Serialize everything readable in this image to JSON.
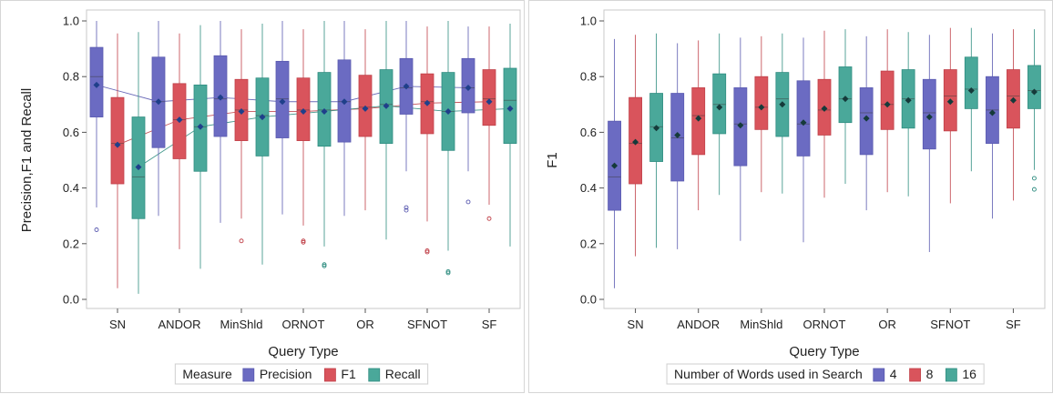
{
  "chart_data": [
    {
      "type": "box",
      "xlabel": "Query Type",
      "ylabel": "Precision,F1 and Recall",
      "ylim": [
        0,
        1.0
      ],
      "yticks": [
        "0.0",
        "0.2",
        "0.4",
        "0.6",
        "0.8",
        "1.0"
      ],
      "categories": [
        "SN",
        "ANDOR",
        "MinShld",
        "ORNOT",
        "OR",
        "SFNOT",
        "SF"
      ],
      "legend": {
        "title": "Measure",
        "position": "bottom"
      },
      "connect_means": true,
      "series": [
        {
          "name": "Precision",
          "color": "#6b6bc2",
          "edge": "#5a5ab0",
          "boxes": [
            {
              "min": 0.33,
              "q1": 0.655,
              "median": 0.8,
              "q3": 0.905,
              "max": 1.0,
              "mean": 0.77,
              "outliers": [
                0.25
              ]
            },
            {
              "min": 0.3,
              "q1": 0.545,
              "median": 0.71,
              "q3": 0.87,
              "max": 1.0,
              "mean": 0.71,
              "outliers": []
            },
            {
              "min": 0.275,
              "q1": 0.585,
              "median": 0.72,
              "q3": 0.875,
              "max": 1.0,
              "mean": 0.725,
              "outliers": []
            },
            {
              "min": 0.305,
              "q1": 0.58,
              "median": 0.72,
              "q3": 0.855,
              "max": 1.0,
              "mean": 0.71,
              "outliers": []
            },
            {
              "min": 0.3,
              "q1": 0.565,
              "median": 0.71,
              "q3": 0.86,
              "max": 1.0,
              "mean": 0.71,
              "outliers": []
            },
            {
              "min": 0.46,
              "q1": 0.665,
              "median": 0.76,
              "q3": 0.865,
              "max": 1.0,
              "mean": 0.765,
              "outliers": [
                0.33,
                0.32
              ]
            },
            {
              "min": 0.46,
              "q1": 0.67,
              "median": 0.76,
              "q3": 0.865,
              "max": 0.98,
              "mean": 0.76,
              "outliers": [
                0.35
              ]
            }
          ]
        },
        {
          "name": "F1",
          "color": "#d9545c",
          "edge": "#c04048",
          "boxes": [
            {
              "min": 0.04,
              "q1": 0.415,
              "median": 0.56,
              "q3": 0.725,
              "max": 0.955,
              "mean": 0.555,
              "outliers": []
            },
            {
              "min": 0.18,
              "q1": 0.505,
              "median": 0.645,
              "q3": 0.775,
              "max": 0.955,
              "mean": 0.645,
              "outliers": []
            },
            {
              "min": 0.29,
              "q1": 0.57,
              "median": 0.68,
              "q3": 0.79,
              "max": 0.97,
              "mean": 0.675,
              "outliers": [
                0.21
              ]
            },
            {
              "min": 0.265,
              "q1": 0.57,
              "median": 0.68,
              "q3": 0.795,
              "max": 0.97,
              "mean": 0.675,
              "outliers": [
                0.21,
                0.205
              ]
            },
            {
              "min": 0.32,
              "q1": 0.585,
              "median": 0.69,
              "q3": 0.805,
              "max": 0.97,
              "mean": 0.685,
              "outliers": []
            },
            {
              "min": 0.28,
              "q1": 0.595,
              "median": 0.71,
              "q3": 0.81,
              "max": 0.98,
              "mean": 0.705,
              "outliers": [
                0.175,
                0.17
              ]
            },
            {
              "min": 0.34,
              "q1": 0.625,
              "median": 0.72,
              "q3": 0.825,
              "max": 0.98,
              "mean": 0.71,
              "outliers": [
                0.29
              ]
            }
          ]
        },
        {
          "name": "Recall",
          "color": "#4aa89a",
          "edge": "#2f8d80",
          "boxes": [
            {
              "min": 0.02,
              "q1": 0.29,
              "median": 0.44,
              "q3": 0.655,
              "max": 0.96,
              "mean": 0.475,
              "outliers": []
            },
            {
              "min": 0.11,
              "q1": 0.46,
              "median": 0.62,
              "q3": 0.77,
              "max": 0.985,
              "mean": 0.62,
              "outliers": []
            },
            {
              "min": 0.125,
              "q1": 0.515,
              "median": 0.66,
              "q3": 0.795,
              "max": 0.99,
              "mean": 0.655,
              "outliers": []
            },
            {
              "min": 0.19,
              "q1": 0.55,
              "median": 0.68,
              "q3": 0.815,
              "max": 1.0,
              "mean": 0.675,
              "outliers": [
                0.125,
                0.12
              ]
            },
            {
              "min": 0.215,
              "q1": 0.56,
              "median": 0.7,
              "q3": 0.825,
              "max": 1.0,
              "mean": 0.695,
              "outliers": []
            },
            {
              "min": 0.175,
              "q1": 0.535,
              "median": 0.675,
              "q3": 0.815,
              "max": 1.0,
              "mean": 0.675,
              "outliers": [
                0.1,
                0.095
              ]
            },
            {
              "min": 0.19,
              "q1": 0.56,
              "median": 0.715,
              "q3": 0.83,
              "max": 0.99,
              "mean": 0.685,
              "outliers": []
            }
          ]
        }
      ]
    },
    {
      "type": "box",
      "xlabel": "Query Type",
      "ylabel": "F1",
      "ylim": [
        0,
        1.0
      ],
      "yticks": [
        "0.0",
        "0.2",
        "0.4",
        "0.6",
        "0.8",
        "1.0"
      ],
      "categories": [
        "SN",
        "ANDOR",
        "MinShld",
        "ORNOT",
        "OR",
        "SFNOT",
        "SF"
      ],
      "legend": {
        "title": "Number of Words used in Search",
        "position": "bottom"
      },
      "connect_means": false,
      "series": [
        {
          "name": "4",
          "color": "#6b6bc2",
          "edge": "#5a5ab0",
          "boxes": [
            {
              "min": 0.04,
              "q1": 0.32,
              "median": 0.44,
              "q3": 0.64,
              "max": 0.935,
              "mean": 0.48,
              "outliers": []
            },
            {
              "min": 0.18,
              "q1": 0.425,
              "median": 0.58,
              "q3": 0.74,
              "max": 0.92,
              "mean": 0.59,
              "outliers": []
            },
            {
              "min": 0.21,
              "q1": 0.48,
              "median": 0.63,
              "q3": 0.76,
              "max": 0.94,
              "mean": 0.625,
              "outliers": []
            },
            {
              "min": 0.205,
              "q1": 0.515,
              "median": 0.63,
              "q3": 0.785,
              "max": 0.94,
              "mean": 0.635,
              "outliers": []
            },
            {
              "min": 0.32,
              "q1": 0.52,
              "median": 0.67,
              "q3": 0.76,
              "max": 0.945,
              "mean": 0.65,
              "outliers": []
            },
            {
              "min": 0.17,
              "q1": 0.54,
              "median": 0.67,
              "q3": 0.79,
              "max": 0.95,
              "mean": 0.655,
              "outliers": []
            },
            {
              "min": 0.29,
              "q1": 0.56,
              "median": 0.68,
              "q3": 0.8,
              "max": 0.955,
              "mean": 0.67,
              "outliers": []
            }
          ]
        },
        {
          "name": "8",
          "color": "#d9545c",
          "edge": "#c04048",
          "boxes": [
            {
              "min": 0.155,
              "q1": 0.415,
              "median": 0.56,
              "q3": 0.725,
              "max": 0.95,
              "mean": 0.565,
              "outliers": []
            },
            {
              "min": 0.32,
              "q1": 0.52,
              "median": 0.66,
              "q3": 0.76,
              "max": 0.93,
              "mean": 0.65,
              "outliers": []
            },
            {
              "min": 0.385,
              "q1": 0.61,
              "median": 0.69,
              "q3": 0.8,
              "max": 0.945,
              "mean": 0.69,
              "outliers": []
            },
            {
              "min": 0.365,
              "q1": 0.59,
              "median": 0.68,
              "q3": 0.79,
              "max": 0.965,
              "mean": 0.685,
              "outliers": []
            },
            {
              "min": 0.385,
              "q1": 0.61,
              "median": 0.7,
              "q3": 0.82,
              "max": 0.97,
              "mean": 0.7,
              "outliers": []
            },
            {
              "min": 0.345,
              "q1": 0.605,
              "median": 0.73,
              "q3": 0.825,
              "max": 0.975,
              "mean": 0.71,
              "outliers": []
            },
            {
              "min": 0.355,
              "q1": 0.615,
              "median": 0.73,
              "q3": 0.825,
              "max": 0.97,
              "mean": 0.715,
              "outliers": []
            }
          ]
        },
        {
          "name": "16",
          "color": "#4aa89a",
          "edge": "#2f8d80",
          "boxes": [
            {
              "min": 0.185,
              "q1": 0.495,
              "median": 0.62,
              "q3": 0.74,
              "max": 0.955,
              "mean": 0.615,
              "outliers": []
            },
            {
              "min": 0.375,
              "q1": 0.595,
              "median": 0.7,
              "q3": 0.81,
              "max": 0.955,
              "mean": 0.69,
              "outliers": []
            },
            {
              "min": 0.38,
              "q1": 0.585,
              "median": 0.72,
              "q3": 0.815,
              "max": 0.955,
              "mean": 0.7,
              "outliers": []
            },
            {
              "min": 0.415,
              "q1": 0.635,
              "median": 0.72,
              "q3": 0.835,
              "max": 0.97,
              "mean": 0.72,
              "outliers": []
            },
            {
              "min": 0.37,
              "q1": 0.615,
              "median": 0.72,
              "q3": 0.825,
              "max": 0.96,
              "mean": 0.715,
              "outliers": []
            },
            {
              "min": 0.46,
              "q1": 0.685,
              "median": 0.755,
              "q3": 0.87,
              "max": 0.975,
              "mean": 0.75,
              "outliers": []
            },
            {
              "min": 0.465,
              "q1": 0.685,
              "median": 0.75,
              "q3": 0.84,
              "max": 0.97,
              "mean": 0.745,
              "outliers": [
                0.435,
                0.395
              ]
            }
          ]
        }
      ]
    }
  ]
}
